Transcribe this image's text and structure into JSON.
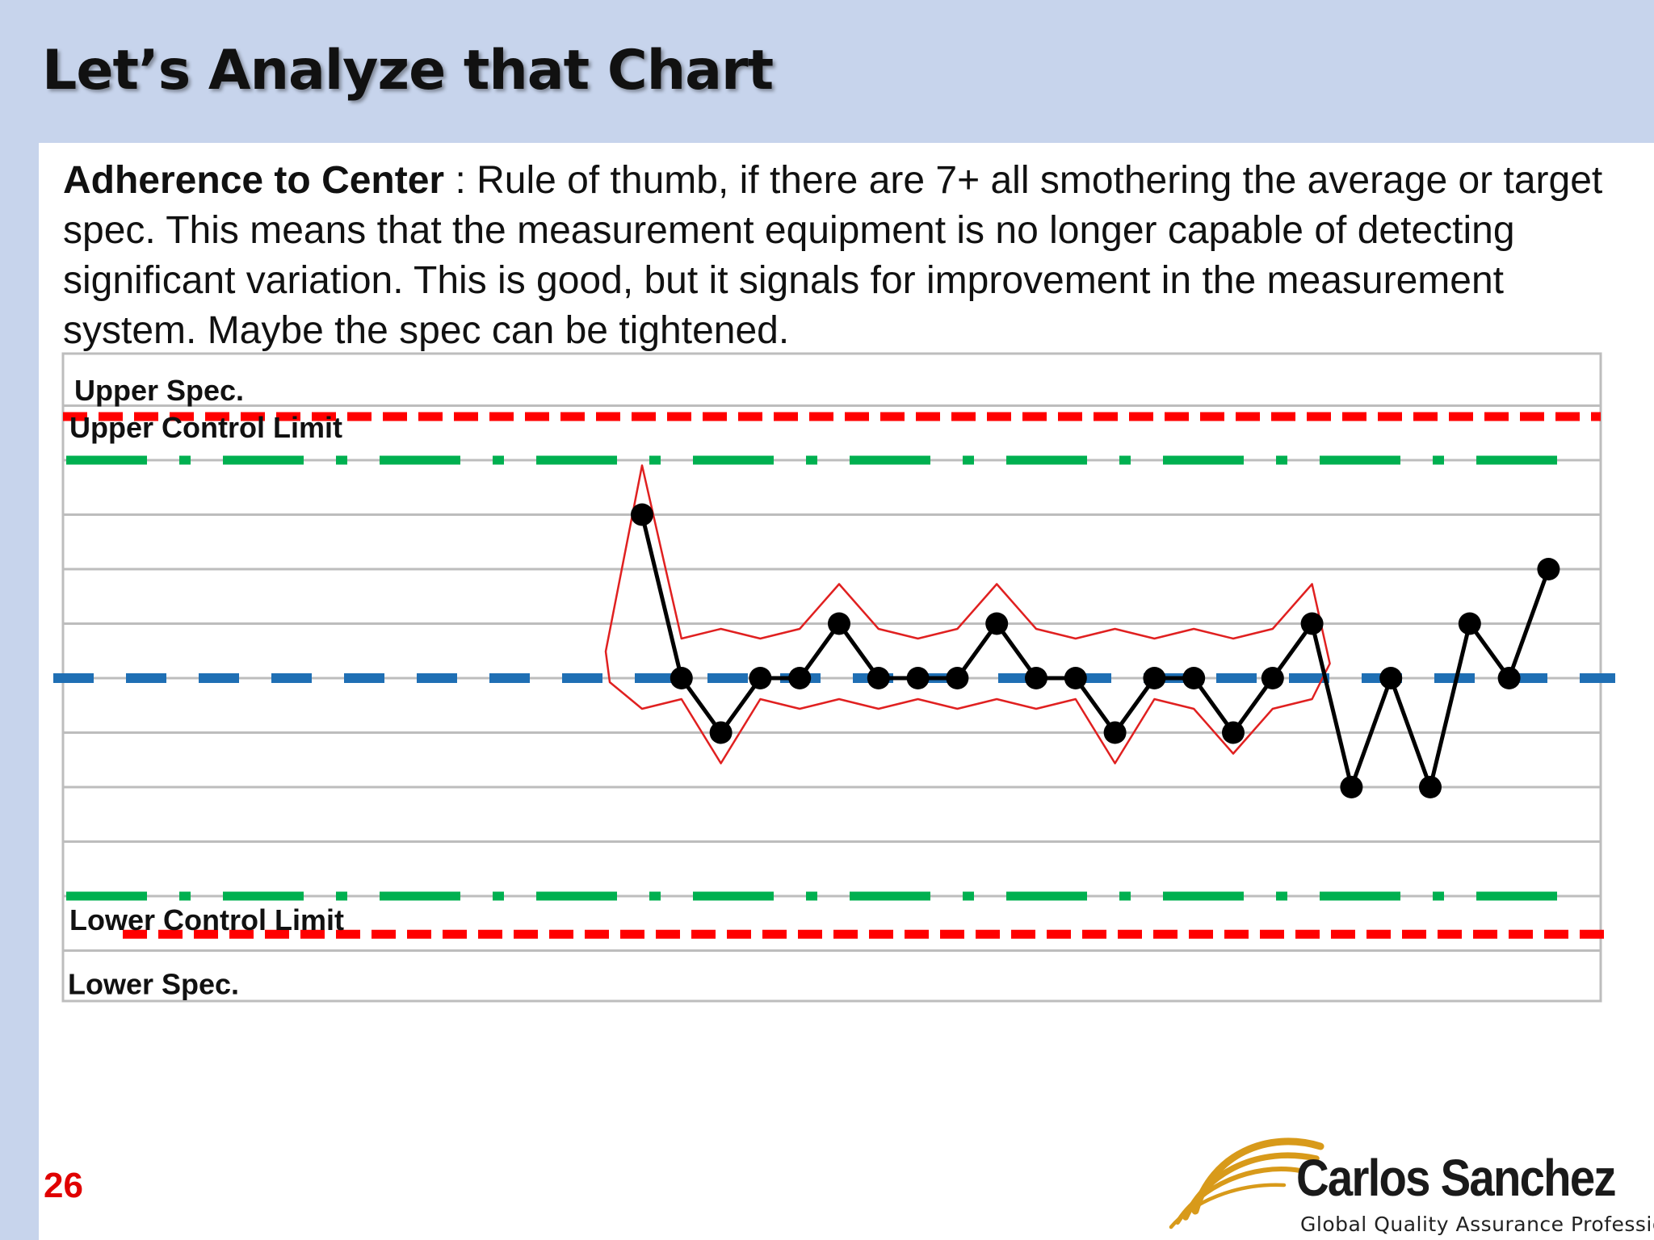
{
  "title": "Let’s Analyze that Chart",
  "body": {
    "heading": "Adherence to Center",
    "text": " : Rule of thumb, if there are 7+ all smothering the average or target spec. This means that the measurement equipment is no longer capable of detecting significant variation. This is good, but it signals for improvement in the measurement system. Maybe the spec can be tightened."
  },
  "page_number": "26",
  "logo": {
    "name": "Carlos Sanchez",
    "tagline": "Global Quality Assurance Professional"
  },
  "colors": {
    "background": "#c7d4ec",
    "spec_line": "#ff0000",
    "control_line": "#00b050",
    "center_line": "#1f6fb4",
    "data_line": "#000000",
    "highlight": "#e02020",
    "logo_gold": "#d89a1a",
    "page_number": "#e00000"
  },
  "chart_data": {
    "type": "line",
    "title": "",
    "xlabel": "",
    "ylabel": "",
    "labels": {
      "upper_spec": "Upper Spec.",
      "upper_control": "Upper Control Limit",
      "lower_control": "Lower Control Limit",
      "lower_spec": "Lower Spec."
    },
    "reference_lines": {
      "upper_spec": 4.8,
      "upper_control": 4,
      "center": 0,
      "lower_control": -4,
      "lower_spec": -4.7
    },
    "ylim": [
      -6,
      6
    ],
    "x": [
      1,
      2,
      3,
      4,
      5,
      6,
      7,
      8,
      9,
      10,
      11,
      12,
      13,
      14,
      15,
      16,
      17,
      18,
      19,
      20,
      21,
      22,
      23,
      24
    ],
    "values": [
      3,
      0,
      -1,
      0,
      0,
      1,
      0,
      0,
      0,
      1,
      0,
      0,
      -1,
      0,
      0,
      -1,
      0,
      1,
      -2,
      0,
      -2,
      1,
      0,
      2
    ],
    "highlight_range": [
      1,
      18
    ],
    "grid": true
  }
}
